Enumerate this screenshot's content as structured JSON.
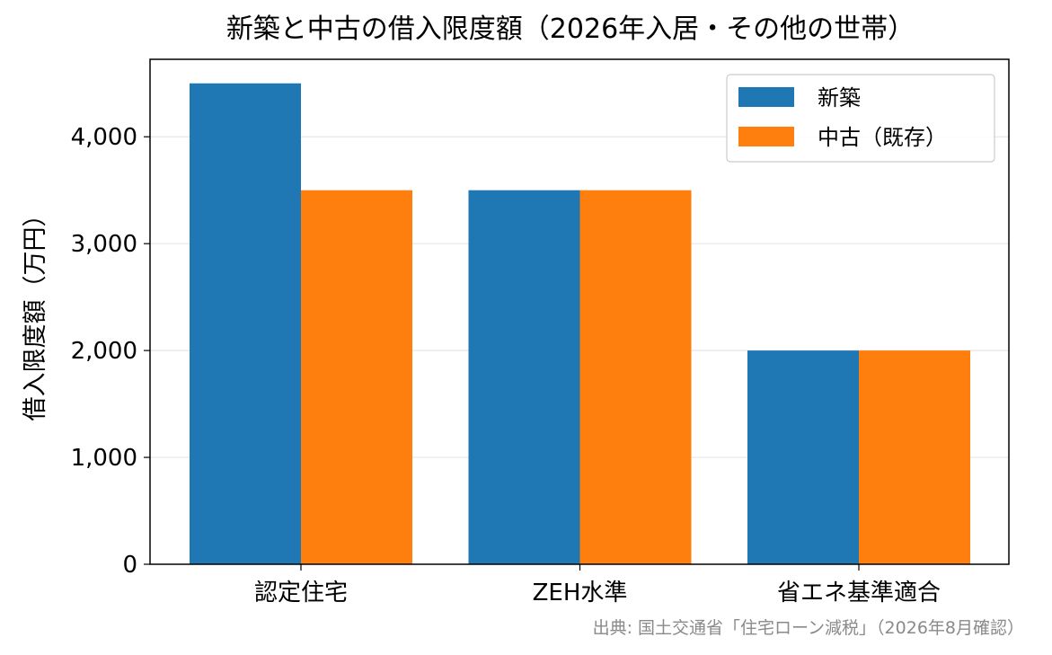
{
  "chart_data": {
    "type": "bar",
    "title": "新築と中古の借入限度額（2026年入居・その他の世帯）",
    "xlabel": "",
    "ylabel": "借入限度額（万円）",
    "categories": [
      "認定住宅",
      "ZEH水準",
      "省エネ基準適合"
    ],
    "series": [
      {
        "name": "新築",
        "values": [
          4500,
          3500,
          2000
        ],
        "color": "#1f77b4"
      },
      {
        "name": "中古（既存）",
        "values": [
          3500,
          3500,
          2000
        ],
        "color": "#ff7f0e"
      }
    ],
    "ylim": [
      0,
      4725
    ],
    "yticks": [
      0,
      1000,
      2000,
      3000,
      4000
    ],
    "ytick_labels": [
      "0",
      "1,000",
      "2,000",
      "3,000",
      "4,000"
    ],
    "grid": "horizontal",
    "legend_position": "top-right"
  },
  "source_note": "出典: 国土交通省「住宅ローン減税」（2026年8月確認）"
}
